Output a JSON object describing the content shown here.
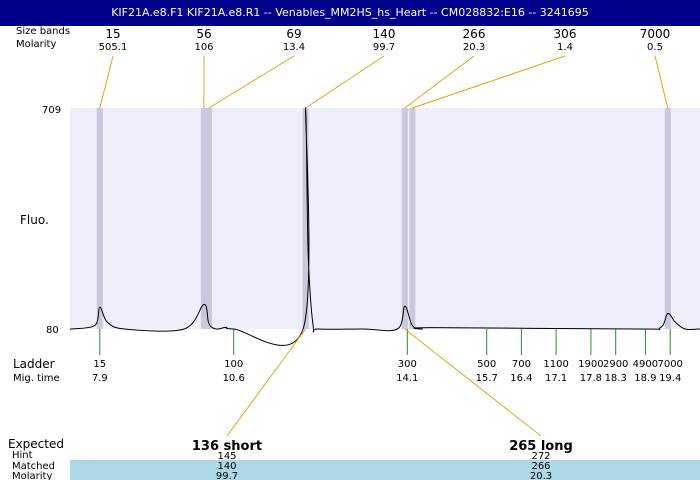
{
  "window": {
    "title": "KIF21A.e8.F1  KIF21A.e8.R1 -- Venables_MM2HS_hs_Heart -- CM028832:E16 -- 3241695"
  },
  "labels": {
    "size_bands": "Size bands",
    "molarity": "Molarity",
    "fluo": "Fluo.",
    "ladder": "Ladder",
    "mig_time": "Mig. time",
    "expected": "Expected",
    "hint": "Hint",
    "matched": "Matched",
    "molarity_bottom": "Molarity"
  },
  "colors": {
    "title_bg": "#00008b",
    "plot_bg": "#eeeefb",
    "band": "#c9c9dc",
    "ladder_tick": "#2e8b2e",
    "connector": "#e8a317",
    "table_row": "#add8e6"
  },
  "chart_data": {
    "type": "line",
    "title": "",
    "ylabel": "Fluo.",
    "xlabel": "",
    "x": [
      7.3,
      7.8,
      7.9,
      8.05,
      8.4,
      9.6,
      10.0,
      10.1,
      10.25,
      10.45,
      10.6,
      12.0,
      12.05,
      12.1,
      12.2,
      12.3,
      13.2,
      13.9,
      14.05,
      14.2,
      14.4,
      14.6,
      18.7,
      19.2,
      19.35,
      19.5,
      19.7,
      20.0
    ],
    "values": [
      80,
      90,
      142,
      100,
      80,
      80,
      150,
      95,
      80,
      85,
      80,
      80,
      709,
      300,
      90,
      80,
      80,
      80,
      145,
      90,
      80,
      84,
      80,
      84,
      124,
      100,
      80,
      80
    ],
    "ylim": [
      80,
      709
    ],
    "yticks": [
      709,
      80
    ],
    "size_bands": [
      {
        "size": "15",
        "molarity": "505.1"
      },
      {
        "size": "56",
        "molarity": "106"
      },
      {
        "size": "69",
        "molarity": "13.4"
      },
      {
        "size": "140",
        "molarity": "99.7"
      },
      {
        "size": "266",
        "molarity": "20.3"
      },
      {
        "size": "306",
        "molarity": "1.4"
      },
      {
        "size": "7000",
        "molarity": "0.5"
      }
    ],
    "band_times": [
      7.9,
      10.0,
      10.1,
      12.05,
      14.05,
      14.2,
      19.35
    ],
    "ladder": [
      {
        "size": "15",
        "time": "7.9"
      },
      {
        "size": "100",
        "time": "10.6"
      },
      {
        "size": "300",
        "time": "14.1"
      },
      {
        "size": "500",
        "time": "15.7"
      },
      {
        "size": "700",
        "time": "16.4"
      },
      {
        "size": "1100",
        "time": "17.1"
      },
      {
        "size": "1900",
        "time": "17.8"
      },
      {
        "size": "2900",
        "time": "18.3"
      },
      {
        "size": "4900",
        "time": "18.9"
      },
      {
        "size": "7000",
        "time": "19.4"
      }
    ],
    "ladder_label_times": [
      7.9,
      10.6,
      14.1,
      15.7,
      16.4,
      17.1,
      17.8,
      18.3,
      18.9,
      19.4
    ],
    "expected": [
      {
        "label": "136 short",
        "hint": "145",
        "matched": "140",
        "molarity": "99.7",
        "peak_time": 12.05
      },
      {
        "label": "265 long",
        "hint": "272",
        "matched": "266",
        "molarity": "20.3",
        "peak_time": 14.05
      }
    ]
  }
}
